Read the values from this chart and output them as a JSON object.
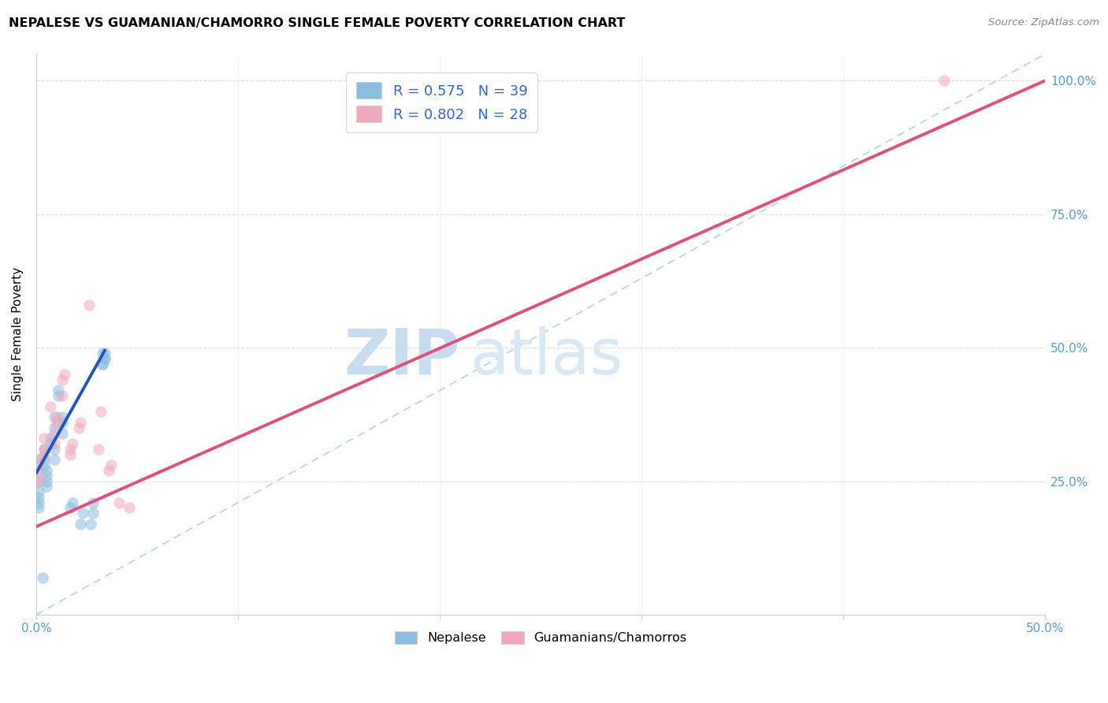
{
  "title": "NEPALESE VS GUAMANIAN/CHAMORRO SINGLE FEMALE POVERTY CORRELATION CHART",
  "source": "Source: ZipAtlas.com",
  "ylabel": "Single Female Poverty",
  "x_min": 0.0,
  "x_max": 0.5,
  "y_min": 0.0,
  "y_max": 1.05,
  "x_ticks": [
    0.0,
    0.1,
    0.2,
    0.3,
    0.4,
    0.5
  ],
  "x_tick_labels": [
    "0.0%",
    "",
    "",
    "",
    "",
    "50.0%"
  ],
  "y_ticks": [
    0.0,
    0.25,
    0.5,
    0.75,
    1.0
  ],
  "y_tick_labels_right": [
    "",
    "25.0%",
    "50.0%",
    "75.0%",
    "100.0%"
  ],
  "nepalese_color": "#8BBDE0",
  "guamanian_color": "#F0A8BC",
  "nepalese_line_color": "#2255BB",
  "guamanian_line_color": "#E0507A",
  "dashed_line_color": "#AACCEE",
  "legend_R1": "R = 0.575",
  "legend_N1": "N = 39",
  "legend_R2": "R = 0.802",
  "legend_N2": "N = 28",
  "watermark_zip": "ZIP",
  "watermark_atlas": "atlas",
  "nepalese_x": [
    0.001,
    0.001,
    0.001,
    0.001,
    0.001,
    0.001,
    0.001,
    0.004,
    0.004,
    0.004,
    0.005,
    0.005,
    0.005,
    0.005,
    0.007,
    0.007,
    0.009,
    0.009,
    0.009,
    0.009,
    0.011,
    0.011,
    0.013,
    0.013,
    0.013,
    0.017,
    0.018,
    0.022,
    0.023,
    0.027,
    0.028,
    0.028,
    0.033,
    0.033,
    0.034,
    0.033,
    0.034,
    0.034,
    0.003
  ],
  "nepalese_y": [
    0.27,
    0.29,
    0.21,
    0.25,
    0.23,
    0.22,
    0.2,
    0.29,
    0.31,
    0.28,
    0.27,
    0.26,
    0.24,
    0.25,
    0.32,
    0.33,
    0.35,
    0.37,
    0.29,
    0.31,
    0.41,
    0.42,
    0.34,
    0.36,
    0.37,
    0.2,
    0.21,
    0.17,
    0.19,
    0.17,
    0.19,
    0.21,
    0.47,
    0.49,
    0.48,
    0.47,
    0.49,
    0.48,
    0.07
  ],
  "guamanian_x": [
    0.001,
    0.001,
    0.001,
    0.001,
    0.004,
    0.004,
    0.004,
    0.007,
    0.009,
    0.009,
    0.01,
    0.01,
    0.013,
    0.013,
    0.014,
    0.017,
    0.017,
    0.018,
    0.021,
    0.022,
    0.026,
    0.031,
    0.032,
    0.036,
    0.037,
    0.041,
    0.046,
    0.45
  ],
  "guamanian_y": [
    0.29,
    0.28,
    0.25,
    0.26,
    0.31,
    0.33,
    0.3,
    0.39,
    0.34,
    0.32,
    0.36,
    0.37,
    0.41,
    0.44,
    0.45,
    0.3,
    0.31,
    0.32,
    0.35,
    0.36,
    0.58,
    0.31,
    0.38,
    0.27,
    0.28,
    0.21,
    0.2,
    1.0
  ],
  "nepalese_trendline_x": [
    0.0,
    0.034
  ],
  "nepalese_trendline_y": [
    0.265,
    0.495
  ],
  "guamanian_trendline_x": [
    0.0,
    0.5
  ],
  "guamanian_trendline_y": [
    0.165,
    1.0
  ],
  "dashed_line_x": [
    0.0,
    0.5
  ],
  "dashed_line_y": [
    0.0,
    1.05
  ]
}
